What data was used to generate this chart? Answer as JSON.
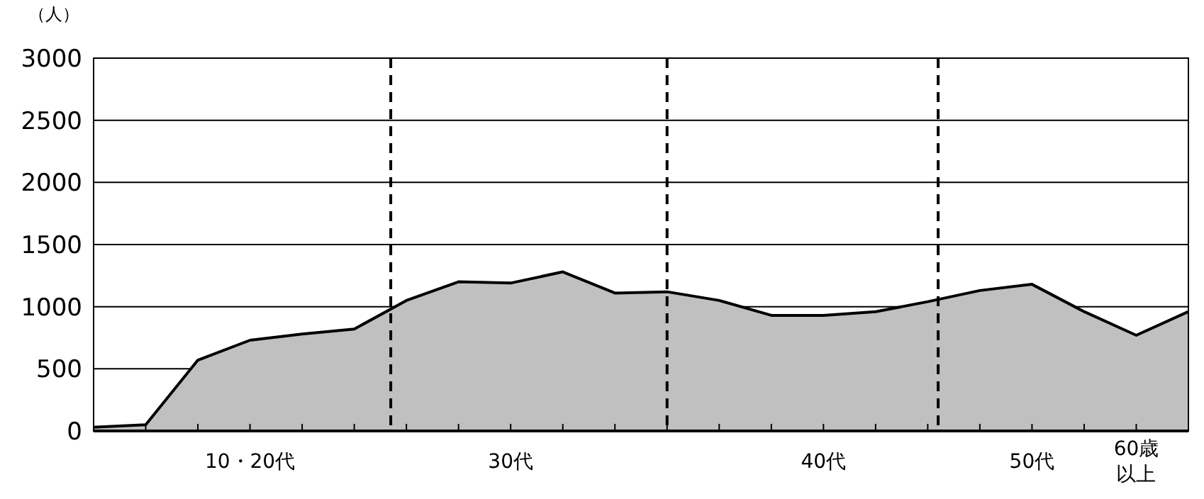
{
  "chart_data": {
    "type": "area",
    "ylabel": "（人）",
    "categories": [
      null,
      null,
      null,
      "10・20代",
      null,
      null,
      null,
      null,
      "30代",
      null,
      null,
      null,
      null,
      null,
      "40代",
      null,
      null,
      null,
      "50代",
      null,
      "60歳以上",
      null
    ],
    "series": [
      {
        "color": "#c0c0c0",
        "values": [
          30,
          50,
          570,
          730,
          780,
          820,
          1050,
          1200,
          1190,
          1280,
          1110,
          1120,
          1050,
          930,
          930,
          960,
          1040,
          1130,
          1180,
          960,
          770,
          960
        ]
      }
    ],
    "ylim": [
      0,
      3000
    ],
    "yticks": [
      0,
      500,
      1000,
      1500,
      2000,
      2500,
      3000
    ],
    "grid": "y"
  }
}
